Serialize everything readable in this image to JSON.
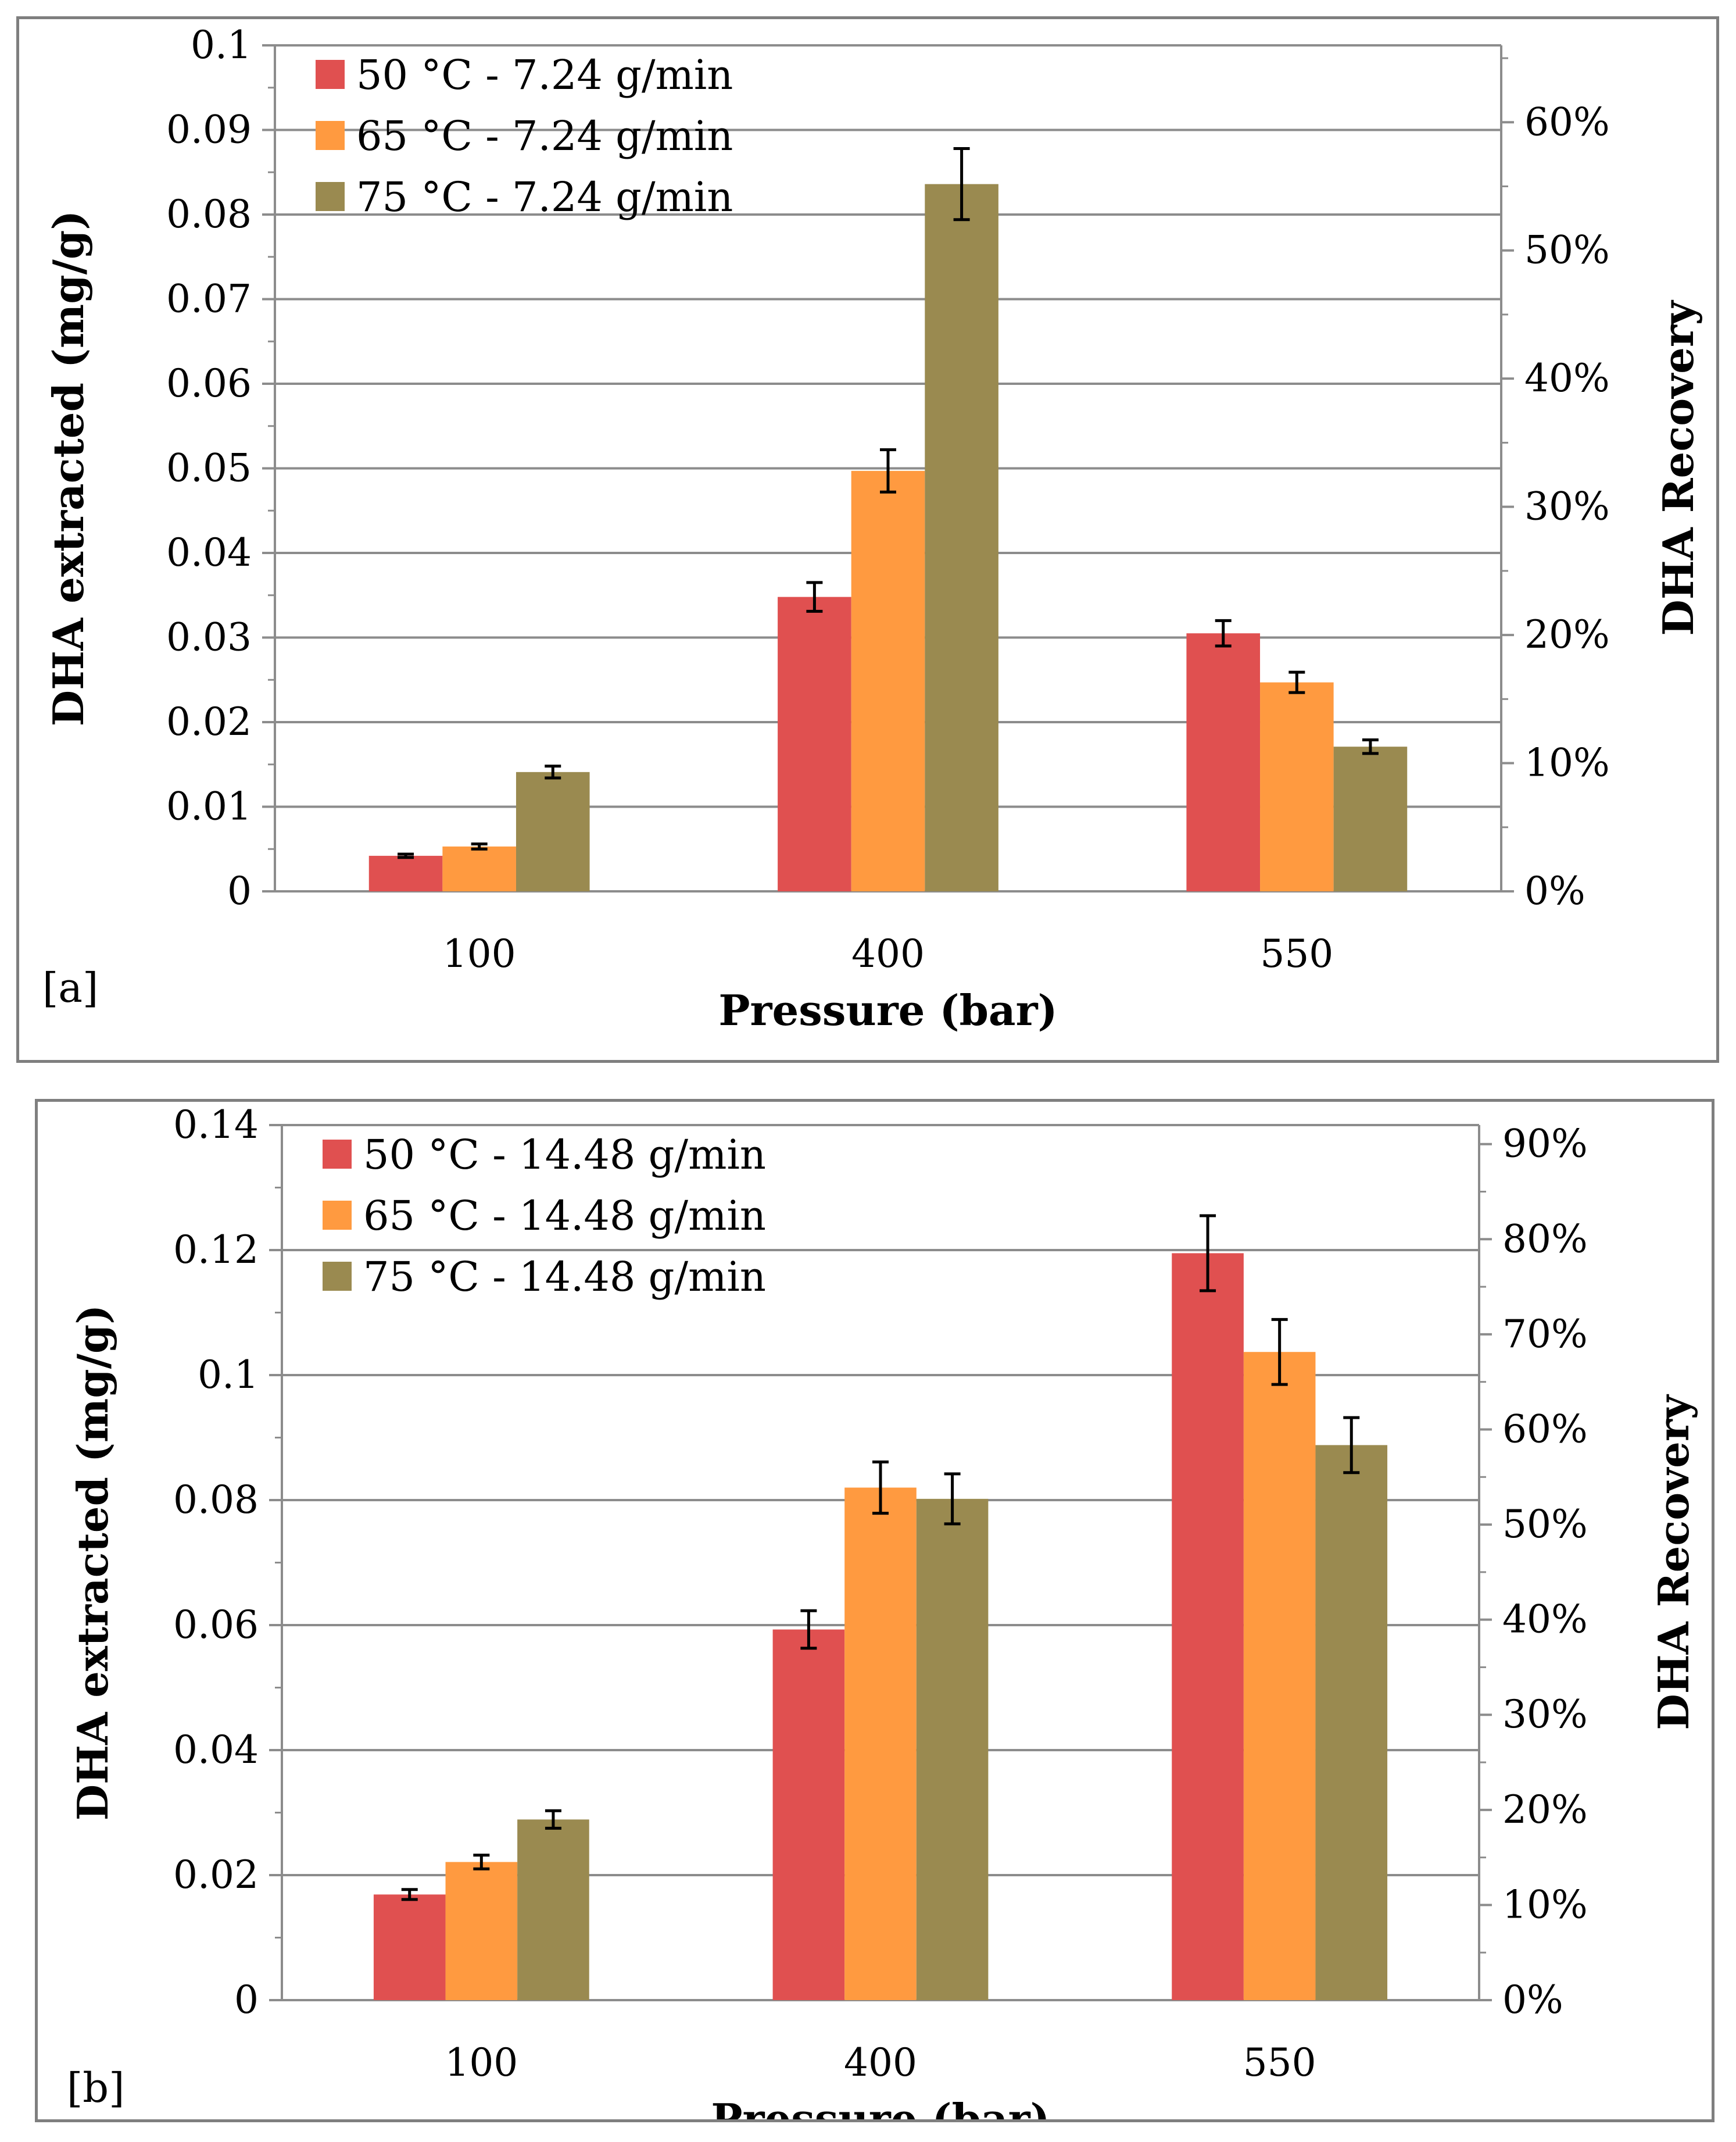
{
  "chart_data": [
    {
      "type": "bar",
      "panel_label": "[a]",
      "categories": [
        "100",
        "400",
        "550"
      ],
      "xlabel": "Pressure (bar)",
      "ylabel": "DHA extracted (mg/g)",
      "ylabel_right": "DHA Recovery",
      "ylim": [
        0,
        0.1
      ],
      "yticks": [
        "0",
        "0.01",
        "0.02",
        "0.03",
        "0.04",
        "0.05",
        "0.06",
        "0.07",
        "0.08",
        "0.09",
        "0.1"
      ],
      "y2lim": [
        0,
        0.66
      ],
      "y2ticks": [
        "0%",
        "10%",
        "20%",
        "30%",
        "40%",
        "50%",
        "60%"
      ],
      "grid": true,
      "legend_position": "top-left",
      "series": [
        {
          "name": "50 °C - 7.24 g/min",
          "color": "#e05050",
          "values": [
            0.0042,
            0.0348,
            0.0305
          ],
          "errors": [
            0.0002,
            0.0017,
            0.0015
          ]
        },
        {
          "name": "65 °C - 7.24 g/min",
          "color": "#ff9a40",
          "values": [
            0.0053,
            0.0497,
            0.0247
          ],
          "errors": [
            0.0003,
            0.0025,
            0.0012
          ]
        },
        {
          "name": "75 °C - 7.24 g/min",
          "color": "#9a8a50",
          "values": [
            0.0141,
            0.0836,
            0.0171
          ],
          "errors": [
            0.0007,
            0.0042,
            0.0008
          ]
        }
      ]
    },
    {
      "type": "bar",
      "panel_label": "[b]",
      "categories": [
        "100",
        "400",
        "550"
      ],
      "xlabel": "Pressure (bar)",
      "ylabel": "DHA extracted (mg/g)",
      "ylabel_right": "DHA Recovery",
      "ylim": [
        0,
        0.14
      ],
      "yticks": [
        "0",
        "0.02",
        "0.04",
        "0.06",
        "0.08",
        "0.1",
        "0.12",
        "0.14"
      ],
      "y2lim": [
        0,
        0.92
      ],
      "y2ticks": [
        "0%",
        "10%",
        "20%",
        "30%",
        "40%",
        "50%",
        "60%",
        "70%",
        "80%",
        "90%"
      ],
      "grid": true,
      "legend_position": "top-left",
      "series": [
        {
          "name": "50 °C - 14.48 g/min",
          "color": "#e05050",
          "values": [
            0.0169,
            0.0593,
            0.1195
          ],
          "errors": [
            0.0008,
            0.003,
            0.006
          ]
        },
        {
          "name": "65 °C - 14.48 g/min",
          "color": "#ff9a40",
          "values": [
            0.0221,
            0.082,
            0.1037
          ],
          "errors": [
            0.0011,
            0.0041,
            0.0052
          ]
        },
        {
          "name": "75 °C - 14.48 g/min",
          "color": "#9a8a50",
          "values": [
            0.0289,
            0.0802,
            0.0888
          ],
          "errors": [
            0.0014,
            0.004,
            0.0044
          ]
        }
      ]
    }
  ]
}
